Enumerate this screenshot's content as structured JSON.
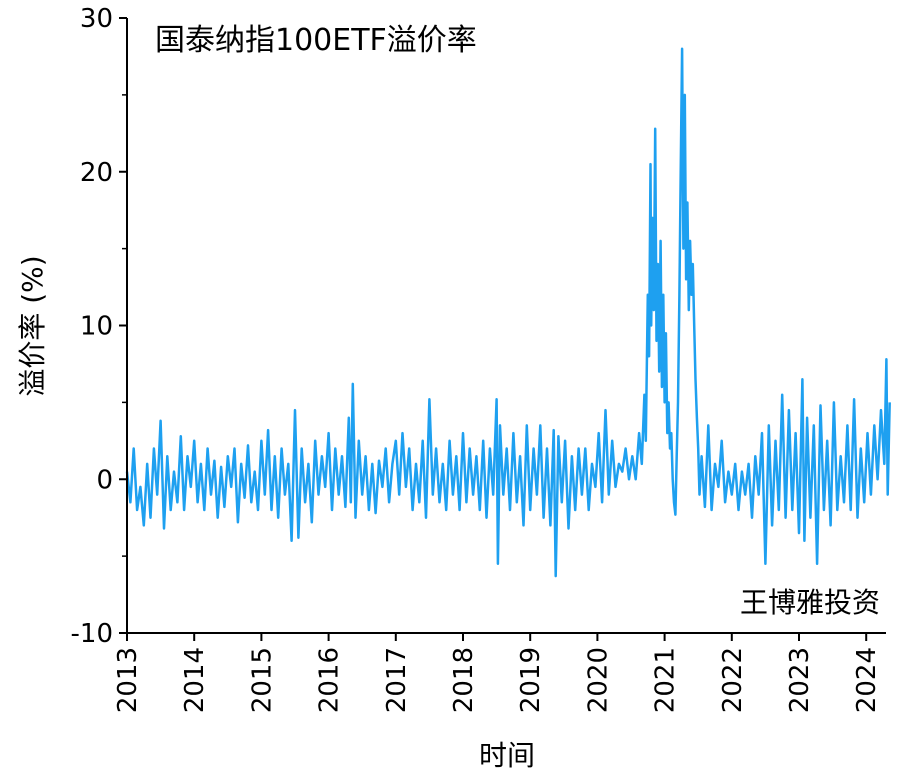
{
  "chart_data": {
    "type": "line",
    "title": "国泰纳指100ETF溢价率",
    "xlabel": "时间",
    "ylabel": "溢价率 (%)",
    "watermark": "王博雅投资",
    "ylim": [
      -10,
      30
    ],
    "yticks": [
      -10,
      0,
      10,
      20,
      30
    ],
    "xlim": [
      2013,
      2024.35
    ],
    "xticks": [
      "2013",
      "2014",
      "2015",
      "2016",
      "2017",
      "2018",
      "2019",
      "2020",
      "2021",
      "2022",
      "2023",
      "2024"
    ],
    "grid": false,
    "series": [
      {
        "color": "#1ea0f0",
        "points": [
          [
            2013.0,
            0.5
          ],
          [
            2013.05,
            -1.5
          ],
          [
            2013.1,
            2.0
          ],
          [
            2013.15,
            -2.0
          ],
          [
            2013.2,
            -0.5
          ],
          [
            2013.25,
            -3.0
          ],
          [
            2013.3,
            1.0
          ],
          [
            2013.35,
            -2.5
          ],
          [
            2013.4,
            2.0
          ],
          [
            2013.45,
            -1.0
          ],
          [
            2013.5,
            3.8
          ],
          [
            2013.55,
            -3.2
          ],
          [
            2013.6,
            1.5
          ],
          [
            2013.65,
            -2.0
          ],
          [
            2013.7,
            0.5
          ],
          [
            2013.75,
            -1.5
          ],
          [
            2013.8,
            2.8
          ],
          [
            2013.85,
            -2.0
          ],
          [
            2013.9,
            1.5
          ],
          [
            2013.95,
            -0.5
          ],
          [
            2014.0,
            2.5
          ],
          [
            2014.05,
            -1.5
          ],
          [
            2014.1,
            1.0
          ],
          [
            2014.15,
            -2.0
          ],
          [
            2014.2,
            2.0
          ],
          [
            2014.25,
            -1.0
          ],
          [
            2014.3,
            1.2
          ],
          [
            2014.35,
            -2.5
          ],
          [
            2014.4,
            0.8
          ],
          [
            2014.45,
            -1.8
          ],
          [
            2014.5,
            1.5
          ],
          [
            2014.55,
            -0.5
          ],
          [
            2014.6,
            2.0
          ],
          [
            2014.65,
            -2.8
          ],
          [
            2014.7,
            1.0
          ],
          [
            2014.75,
            -1.2
          ],
          [
            2014.8,
            2.2
          ],
          [
            2014.85,
            -1.5
          ],
          [
            2014.9,
            0.5
          ],
          [
            2014.95,
            -2.0
          ],
          [
            2015.0,
            2.5
          ],
          [
            2015.05,
            -1.0
          ],
          [
            2015.1,
            3.2
          ],
          [
            2015.15,
            -2.0
          ],
          [
            2015.2,
            1.5
          ],
          [
            2015.25,
            -2.5
          ],
          [
            2015.3,
            2.0
          ],
          [
            2015.35,
            -1.0
          ],
          [
            2015.4,
            1.0
          ],
          [
            2015.45,
            -4.0
          ],
          [
            2015.5,
            4.5
          ],
          [
            2015.55,
            -3.8
          ],
          [
            2015.6,
            2.0
          ],
          [
            2015.65,
            -1.5
          ],
          [
            2015.7,
            1.0
          ],
          [
            2015.75,
            -2.8
          ],
          [
            2015.8,
            2.5
          ],
          [
            2015.85,
            -1.0
          ],
          [
            2015.9,
            1.5
          ],
          [
            2015.95,
            -0.5
          ],
          [
            2016.0,
            3.0
          ],
          [
            2016.05,
            -2.0
          ],
          [
            2016.1,
            2.0
          ],
          [
            2016.15,
            -1.0
          ],
          [
            2016.2,
            1.5
          ],
          [
            2016.25,
            -1.8
          ],
          [
            2016.3,
            4.0
          ],
          [
            2016.33,
            -1.5
          ],
          [
            2016.36,
            6.2
          ],
          [
            2016.4,
            -2.5
          ],
          [
            2016.45,
            2.5
          ],
          [
            2016.5,
            -1.0
          ],
          [
            2016.55,
            1.5
          ],
          [
            2016.6,
            -2.0
          ],
          [
            2016.65,
            1.0
          ],
          [
            2016.7,
            -2.2
          ],
          [
            2016.75,
            1.2
          ],
          [
            2016.8,
            -0.5
          ],
          [
            2016.85,
            2.0
          ],
          [
            2016.9,
            -1.5
          ],
          [
            2016.95,
            1.0
          ],
          [
            2017.0,
            2.5
          ],
          [
            2017.05,
            -1.0
          ],
          [
            2017.1,
            3.0
          ],
          [
            2017.15,
            -0.5
          ],
          [
            2017.2,
            2.0
          ],
          [
            2017.25,
            -2.0
          ],
          [
            2017.3,
            1.0
          ],
          [
            2017.35,
            -1.5
          ],
          [
            2017.4,
            2.5
          ],
          [
            2017.45,
            -2.5
          ],
          [
            2017.5,
            5.2
          ],
          [
            2017.55,
            -1.0
          ],
          [
            2017.6,
            2.0
          ],
          [
            2017.65,
            -1.5
          ],
          [
            2017.7,
            1.0
          ],
          [
            2017.75,
            -2.0
          ],
          [
            2017.8,
            2.5
          ],
          [
            2017.85,
            -1.0
          ],
          [
            2017.9,
            1.5
          ],
          [
            2017.95,
            -2.0
          ],
          [
            2018.0,
            3.0
          ],
          [
            2018.05,
            -1.5
          ],
          [
            2018.1,
            2.0
          ],
          [
            2018.15,
            -1.0
          ],
          [
            2018.2,
            1.5
          ],
          [
            2018.25,
            -2.0
          ],
          [
            2018.3,
            2.5
          ],
          [
            2018.35,
            -2.5
          ],
          [
            2018.4,
            2.0
          ],
          [
            2018.45,
            -1.0
          ],
          [
            2018.5,
            5.2
          ],
          [
            2018.52,
            -5.5
          ],
          [
            2018.55,
            3.5
          ],
          [
            2018.6,
            -1.0
          ],
          [
            2018.65,
            2.0
          ],
          [
            2018.7,
            -2.0
          ],
          [
            2018.75,
            3.0
          ],
          [
            2018.8,
            -1.5
          ],
          [
            2018.85,
            1.5
          ],
          [
            2018.9,
            -3.0
          ],
          [
            2018.95,
            3.5
          ],
          [
            2019.0,
            -2.0
          ],
          [
            2019.05,
            2.0
          ],
          [
            2019.1,
            -1.0
          ],
          [
            2019.15,
            3.5
          ],
          [
            2019.2,
            -2.5
          ],
          [
            2019.25,
            2.0
          ],
          [
            2019.3,
            -3.0
          ],
          [
            2019.35,
            3.2
          ],
          [
            2019.38,
            -6.3
          ],
          [
            2019.42,
            2.8
          ],
          [
            2019.47,
            -1.5
          ],
          [
            2019.52,
            2.5
          ],
          [
            2019.57,
            -3.2
          ],
          [
            2019.62,
            1.5
          ],
          [
            2019.67,
            -2.0
          ],
          [
            2019.72,
            2.0
          ],
          [
            2019.77,
            -1.0
          ],
          [
            2019.82,
            2.0
          ],
          [
            2019.87,
            -2.0
          ],
          [
            2019.92,
            1.0
          ],
          [
            2019.97,
            -0.5
          ],
          [
            2020.02,
            3.0
          ],
          [
            2020.07,
            -1.5
          ],
          [
            2020.12,
            4.5
          ],
          [
            2020.17,
            -1.0
          ],
          [
            2020.22,
            2.5
          ],
          [
            2020.27,
            -0.5
          ],
          [
            2020.32,
            1.0
          ],
          [
            2020.37,
            0.5
          ],
          [
            2020.42,
            2.0
          ],
          [
            2020.47,
            0.0
          ],
          [
            2020.52,
            1.5
          ],
          [
            2020.57,
            0.0
          ],
          [
            2020.62,
            3.0
          ],
          [
            2020.66,
            1.0
          ],
          [
            2020.7,
            5.5
          ],
          [
            2020.72,
            2.5
          ],
          [
            2020.75,
            12.0
          ],
          [
            2020.77,
            8.0
          ],
          [
            2020.79,
            20.5
          ],
          [
            2020.8,
            10.0
          ],
          [
            2020.82,
            17.0
          ],
          [
            2020.84,
            11.0
          ],
          [
            2020.86,
            22.8
          ],
          [
            2020.88,
            9.0
          ],
          [
            2020.9,
            14.0
          ],
          [
            2020.92,
            7.0
          ],
          [
            2020.94,
            15.5
          ],
          [
            2020.96,
            6.0
          ],
          [
            2020.98,
            12.0
          ],
          [
            2021.0,
            5.0
          ],
          [
            2021.02,
            9.5
          ],
          [
            2021.04,
            3.0
          ],
          [
            2021.06,
            5.0
          ],
          [
            2021.08,
            2.0
          ],
          [
            2021.1,
            3.0
          ],
          [
            2021.12,
            0.0
          ],
          [
            2021.14,
            -1.5
          ],
          [
            2021.16,
            -2.3
          ],
          [
            2021.18,
            1.5
          ],
          [
            2021.2,
            5.0
          ],
          [
            2021.22,
            12.0
          ],
          [
            2021.24,
            20.0
          ],
          [
            2021.26,
            28.0
          ],
          [
            2021.28,
            15.0
          ],
          [
            2021.3,
            25.0
          ],
          [
            2021.32,
            13.0
          ],
          [
            2021.34,
            18.0
          ],
          [
            2021.36,
            11.0
          ],
          [
            2021.38,
            15.5
          ],
          [
            2021.4,
            12.0
          ],
          [
            2021.42,
            14.0
          ],
          [
            2021.44,
            10.0
          ],
          [
            2021.46,
            6.5
          ],
          [
            2021.48,
            4.0
          ],
          [
            2021.5,
            2.0
          ],
          [
            2021.52,
            -1.0
          ],
          [
            2021.55,
            1.5
          ],
          [
            2021.6,
            -1.8
          ],
          [
            2021.65,
            3.5
          ],
          [
            2021.7,
            -2.0
          ],
          [
            2021.75,
            1.0
          ],
          [
            2021.8,
            -0.5
          ],
          [
            2021.85,
            2.5
          ],
          [
            2021.9,
            -1.5
          ],
          [
            2021.95,
            0.5
          ],
          [
            2022.0,
            -1.0
          ],
          [
            2022.05,
            1.0
          ],
          [
            2022.1,
            -2.0
          ],
          [
            2022.15,
            0.5
          ],
          [
            2022.2,
            -1.0
          ],
          [
            2022.25,
            1.0
          ],
          [
            2022.3,
            -2.5
          ],
          [
            2022.35,
            1.5
          ],
          [
            2022.4,
            -1.0
          ],
          [
            2022.45,
            3.0
          ],
          [
            2022.5,
            -5.5
          ],
          [
            2022.55,
            3.5
          ],
          [
            2022.6,
            -3.0
          ],
          [
            2022.65,
            2.5
          ],
          [
            2022.7,
            -2.0
          ],
          [
            2022.75,
            5.5
          ],
          [
            2022.8,
            -2.5
          ],
          [
            2022.85,
            4.5
          ],
          [
            2022.9,
            -2.0
          ],
          [
            2022.95,
            3.0
          ],
          [
            2023.0,
            -3.5
          ],
          [
            2023.05,
            6.5
          ],
          [
            2023.08,
            -4.0
          ],
          [
            2023.12,
            4.0
          ],
          [
            2023.17,
            -2.5
          ],
          [
            2023.22,
            3.5
          ],
          [
            2023.27,
            -5.5
          ],
          [
            2023.32,
            4.8
          ],
          [
            2023.37,
            -2.0
          ],
          [
            2023.42,
            2.5
          ],
          [
            2023.47,
            -3.0
          ],
          [
            2023.52,
            5.0
          ],
          [
            2023.57,
            -2.0
          ],
          [
            2023.62,
            1.5
          ],
          [
            2023.67,
            -1.5
          ],
          [
            2023.72,
            3.5
          ],
          [
            2023.77,
            -2.0
          ],
          [
            2023.82,
            5.2
          ],
          [
            2023.87,
            -2.5
          ],
          [
            2023.92,
            2.0
          ],
          [
            2023.97,
            -1.5
          ],
          [
            2024.02,
            3.0
          ],
          [
            2024.07,
            -1.0
          ],
          [
            2024.12,
            3.5
          ],
          [
            2024.17,
            0.0
          ],
          [
            2024.22,
            4.5
          ],
          [
            2024.27,
            1.0
          ],
          [
            2024.3,
            7.8
          ],
          [
            2024.32,
            -1.0
          ],
          [
            2024.35,
            5.0
          ]
        ]
      }
    ]
  }
}
